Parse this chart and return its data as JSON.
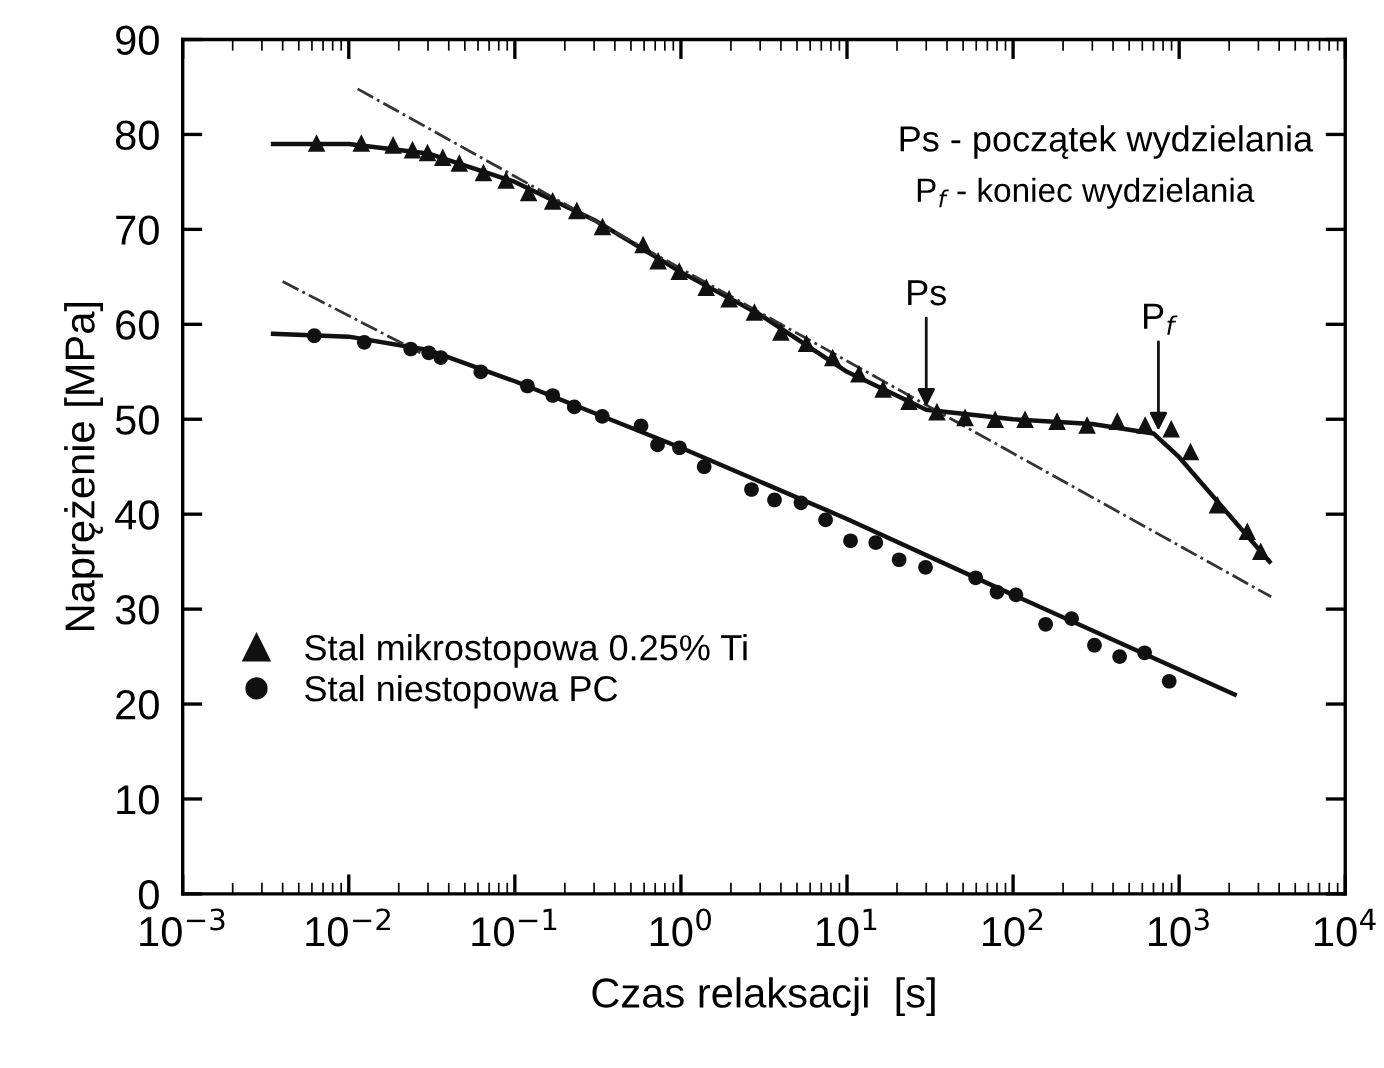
{
  "chart_data": {
    "type": "scatter",
    "xlabel": "Czas relaksacji  [s]",
    "ylabel": "Naprężenie [MPa]",
    "log": "x",
    "xlim": [
      0.001,
      10000
    ],
    "ylim": [
      0,
      90
    ],
    "xticks": [
      {
        "value": 0.001,
        "label": "10$^{−3}$"
      },
      {
        "value": 0.01,
        "label": "10$^{−2}$"
      },
      {
        "value": 0.1,
        "label": "10$^{−1}$"
      },
      {
        "value": 1,
        "label": "10$^{0}$"
      },
      {
        "value": 10,
        "label": "10$^{1}$"
      },
      {
        "value": 100,
        "label": "10$^{2}$"
      },
      {
        "value": 1000,
        "label": "10$^{3}$"
      },
      {
        "value": 10000,
        "label": "10$^{4}$"
      }
    ],
    "yticks": [
      0,
      10,
      20,
      30,
      40,
      50,
      60,
      70,
      80,
      90
    ],
    "grid": false,
    "legend": "bottom left",
    "series": [
      {
        "type": "line",
        "color": "#111111",
        "line_style": "solid",
        "marker": "none",
        "x": [
          0.0035,
          0.01,
          0.03,
          0.1,
          0.3,
          1,
          3,
          10,
          30,
          100,
          300,
          700,
          1000,
          3500
        ],
        "values": [
          79,
          79,
          78,
          75,
          71,
          65.5,
          61,
          55,
          51,
          50,
          49.5,
          48.5,
          46,
          35
        ]
      },
      {
        "type": "line",
        "color": "#111111",
        "line_style": "solid",
        "marker": "none",
        "x": [
          0.0035,
          0.01,
          0.03,
          0.1,
          1,
          10,
          100,
          2160
        ],
        "values": [
          59,
          58.7,
          57.3,
          54,
          47,
          39.5,
          31.5,
          21
        ]
      },
      {
        "type": "line",
        "color": "#333333",
        "line_style": "dashdot",
        "marker": "none",
        "x": [
          0.0113,
          3580
        ],
        "values": [
          84.8,
          31.3
        ]
      },
      {
        "type": "line",
        "color": "#333333",
        "line_style": "dashdot",
        "marker": "none",
        "x": [
          0.004,
          0.027
        ],
        "values": [
          64.5,
          57
        ]
      },
      {
        "name": "Stal mikrostopowa 0.25% Ti",
        "color": "#111111",
        "marker": "triangle",
        "x": [
          0.0064,
          0.0119,
          0.0185,
          0.0242,
          0.0298,
          0.0368,
          0.0463,
          0.0647,
          0.0885,
          0.121,
          0.169,
          0.236,
          0.337,
          0.592,
          0.729,
          0.977,
          1.42,
          1.95,
          2.77,
          4.0,
          5.7,
          8.2,
          11.8,
          16.5,
          23.6,
          34.8,
          51.4,
          78,
          118,
          184,
          279,
          424,
          624,
          896,
          1170,
          1700,
          2570,
          3100
        ],
        "values": [
          79.1,
          79.1,
          78.9,
          78.4,
          78.1,
          77.6,
          77.0,
          76.0,
          75.2,
          73.9,
          73.0,
          72.0,
          70.3,
          68.4,
          66.7,
          65.6,
          63.9,
          62.7,
          61.3,
          59.2,
          58.0,
          56.5,
          54.8,
          53.2,
          51.9,
          50.8,
          50.2,
          50.0,
          50.0,
          49.8,
          49.4,
          49.8,
          49.4,
          49.0,
          46.6,
          41.0,
          38.2,
          36.1
        ]
      },
      {
        "name": "Stal niestopowa PC",
        "color": "#111111",
        "marker": "circle",
        "x": [
          0.0062,
          0.0124,
          0.0236,
          0.0303,
          0.0358,
          0.0624,
          0.119,
          0.169,
          0.228,
          0.336,
          0.575,
          0.723,
          0.98,
          1.38,
          2.66,
          3.66,
          5.28,
          7.43,
          10.5,
          14.9,
          20.6,
          29.7,
          59.5,
          80,
          104,
          157,
          225,
          309,
          438,
          619,
          871
        ],
        "values": [
          58.8,
          58.1,
          57.4,
          57.0,
          56.5,
          55.0,
          53.5,
          52.5,
          51.3,
          50.3,
          49.3,
          47.3,
          47.0,
          45.0,
          42.6,
          41.5,
          41.2,
          39.4,
          37.2,
          37.0,
          35.2,
          34.4,
          33.3,
          31.8,
          31.5,
          28.4,
          29.0,
          26.2,
          25.0,
          25.4,
          22.4
        ]
      }
    ],
    "annotations": [
      "Ps - początek wydzielania",
      "P$_{f}$ - koniec wydzielania",
      {
        "text": "Ps",
        "x": 30,
        "y": 51
      },
      {
        "text": "P$_{f}$",
        "x": 750,
        "y": 48.5
      }
    ]
  }
}
